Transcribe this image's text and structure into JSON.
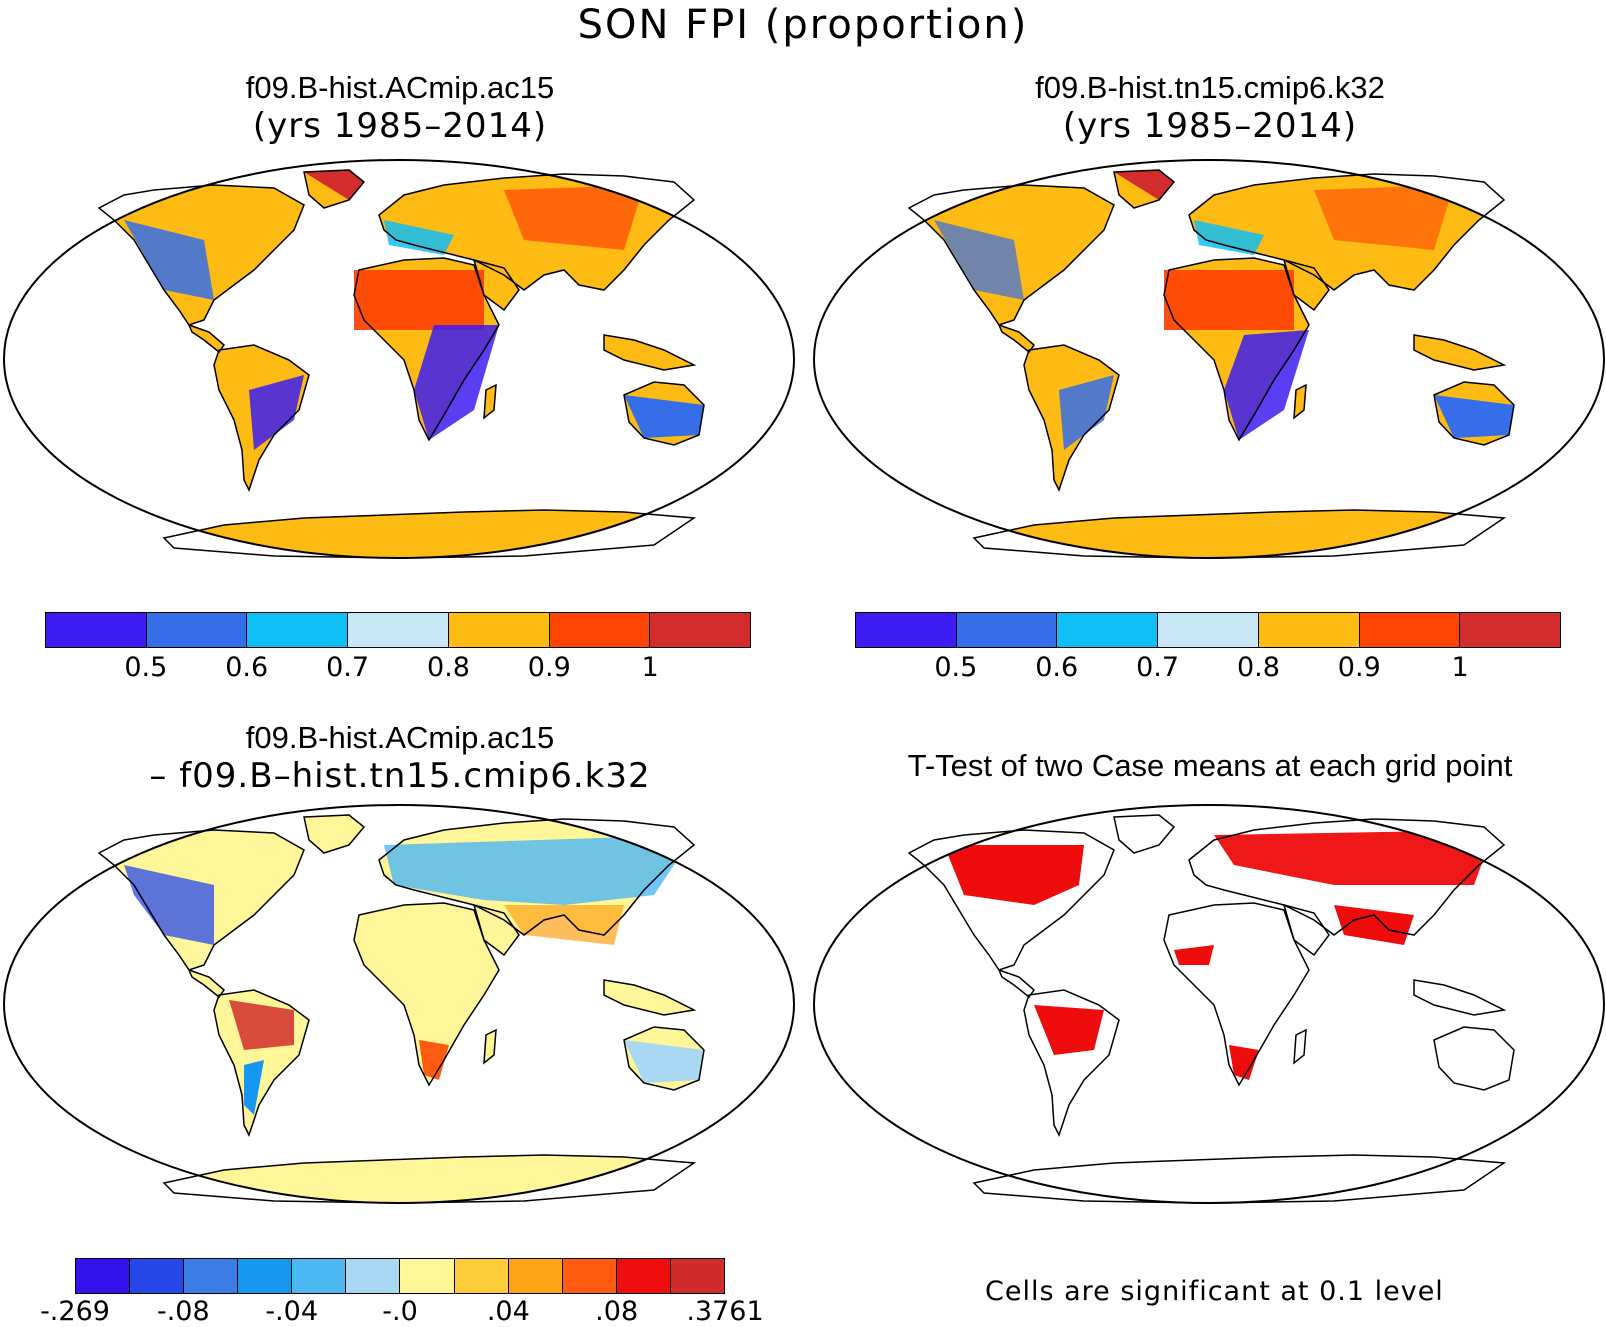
{
  "title": "SON FPI (proportion)",
  "panels": [
    {
      "line1": "f09.B-hist.ACmip.ac15",
      "line2": "(yrs 1985–2014)"
    },
    {
      "line1": "f09.B-hist.tn15.cmip6.k32",
      "line2": "(yrs 1985–2014)"
    },
    {
      "line1": "f09.B-hist.ACmip.ac15",
      "line2": "– f09.B–hist.tn15.cmip6.k32"
    },
    {
      "line1": "T-Test of two Case means at each grid point",
      "line2": ""
    }
  ],
  "colorbar_abs": {
    "colors": [
      "#3c1cf0",
      "#356ee8",
      "#10bef6",
      "#c8e6f6",
      "#fdbb14",
      "#fe4405",
      "#d22c2c"
    ],
    "ticks": [
      "0.5",
      "0.6",
      "0.7",
      "0.8",
      "0.9",
      "1"
    ]
  },
  "colorbar_diff": {
    "colors": [
      "#3312ee",
      "#2747e8",
      "#3c7ce6",
      "#1798f0",
      "#4cb8f2",
      "#aad8f2",
      "#fff69a",
      "#fecd3a",
      "#fea316",
      "#fe5a10",
      "#ee0e0e",
      "#d02c2c"
    ],
    "ticks": [
      "-.269",
      "-.08",
      "-.04",
      "-.0",
      ".04",
      ".08",
      ".3761"
    ]
  },
  "ttest_note": "Cells are significant at 0.1 level",
  "significance_color": "#ee0c0c"
}
